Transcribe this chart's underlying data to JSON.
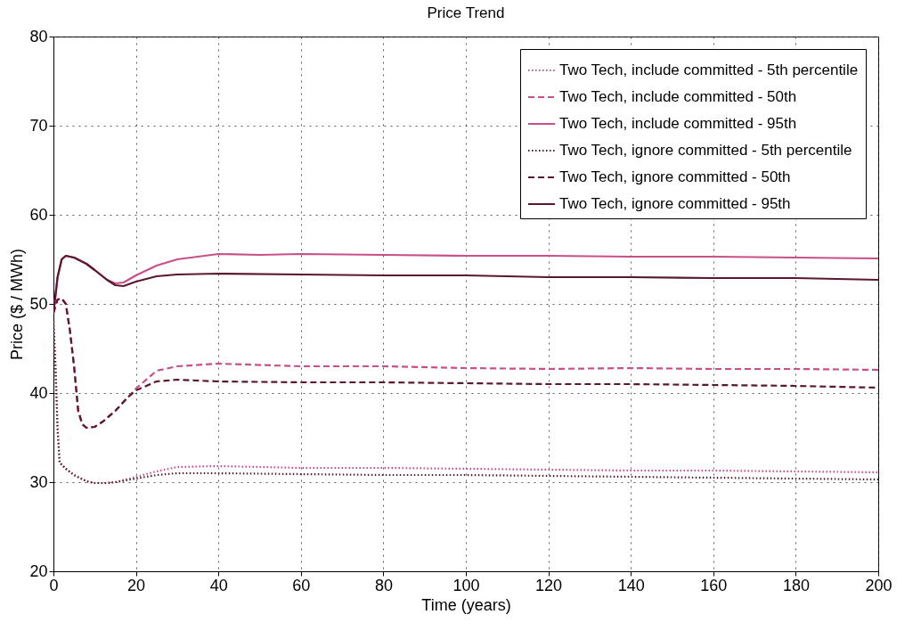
{
  "chart_data": {
    "type": "line",
    "title": "Price Trend",
    "xlabel": "Time (years)",
    "ylabel": "Price ($ / MWh)",
    "xlim": [
      0,
      200
    ],
    "xticks": [
      0,
      20,
      40,
      60,
      80,
      100,
      120,
      140,
      160,
      180,
      200
    ],
    "ylim": [
      20,
      80
    ],
    "yticks": [
      20,
      30,
      40,
      50,
      60,
      70,
      80
    ],
    "grid": true,
    "legend": "top right",
    "series": [
      {
        "name": "Two Tech, include committed - 5th percentile",
        "color": "#c8508a",
        "line_style": "dotted",
        "x": [
          0,
          0.5,
          1,
          1.5,
          3,
          5,
          8,
          10,
          13,
          15,
          20,
          25,
          30,
          40,
          60,
          80,
          100,
          120,
          140,
          160,
          180,
          200
        ],
        "values": [
          48,
          43,
          36,
          32.2,
          31.5,
          30.8,
          30.1,
          29.9,
          29.9,
          30,
          30.6,
          31.2,
          31.7,
          31.8,
          31.6,
          31.6,
          31.5,
          31.4,
          31.3,
          31.3,
          31.2,
          31.1
        ]
      },
      {
        "name": "Two Tech, include committed - 50th",
        "color": "#c8508a",
        "line_style": "dashed",
        "x": [
          0,
          1,
          2,
          3,
          4,
          5,
          6,
          7,
          8,
          10,
          12,
          15,
          18,
          20,
          25,
          30,
          40,
          60,
          80,
          100,
          120,
          140,
          160,
          180,
          200
        ],
        "values": [
          49,
          50.5,
          50.6,
          50,
          47,
          43,
          38,
          36.5,
          36.1,
          36.2,
          36.8,
          38,
          39.5,
          40.5,
          42.5,
          43,
          43.3,
          43,
          43,
          42.8,
          42.7,
          42.8,
          42.7,
          42.7,
          42.6
        ]
      },
      {
        "name": "Two Tech, include committed - 95th",
        "color": "#c8508a",
        "line_style": "solid",
        "x": [
          0,
          1,
          2,
          3,
          5,
          8,
          10,
          13,
          15,
          17,
          20,
          25,
          30,
          40,
          50,
          60,
          80,
          100,
          120,
          140,
          160,
          180,
          200
        ],
        "values": [
          49,
          53,
          55,
          55.4,
          55.2,
          54.5,
          53.8,
          52.7,
          52.3,
          52.4,
          53.2,
          54.3,
          55,
          55.6,
          55.5,
          55.6,
          55.5,
          55.4,
          55.4,
          55.3,
          55.3,
          55.2,
          55.1
        ]
      },
      {
        "name": "Two Tech, ignore committed - 5th percentile",
        "color": "#5a1830",
        "line_style": "dotted",
        "x": [
          0,
          0.5,
          1,
          1.5,
          3,
          5,
          8,
          10,
          13,
          15,
          20,
          25,
          30,
          40,
          60,
          80,
          100,
          120,
          140,
          160,
          180,
          200
        ],
        "values": [
          48,
          43,
          36,
          32.2,
          31.5,
          30.8,
          30.1,
          29.9,
          29.9,
          30,
          30.4,
          30.8,
          31,
          31,
          30.9,
          30.8,
          30.8,
          30.7,
          30.6,
          30.5,
          30.4,
          30.3
        ]
      },
      {
        "name": "Two Tech, ignore committed - 50th",
        "color": "#5a1830",
        "line_style": "dashed",
        "x": [
          0,
          1,
          2,
          3,
          4,
          5,
          6,
          7,
          8,
          10,
          12,
          15,
          18,
          20,
          25,
          30,
          40,
          60,
          80,
          100,
          120,
          140,
          160,
          180,
          200
        ],
        "values": [
          49,
          50.5,
          50.6,
          50,
          47,
          43,
          38,
          36.5,
          36.1,
          36.2,
          36.8,
          38,
          39.5,
          40.3,
          41.3,
          41.5,
          41.3,
          41.2,
          41.2,
          41.1,
          41,
          41,
          40.9,
          40.8,
          40.6
        ]
      },
      {
        "name": "Two Tech, ignore committed - 95th",
        "color": "#5a1830",
        "line_style": "solid",
        "x": [
          0,
          1,
          2,
          3,
          5,
          8,
          10,
          13,
          15,
          17,
          20,
          25,
          30,
          40,
          60,
          80,
          100,
          120,
          140,
          160,
          180,
          200
        ],
        "values": [
          49,
          53,
          55,
          55.4,
          55.2,
          54.5,
          53.8,
          52.7,
          52.1,
          52,
          52.5,
          53.1,
          53.3,
          53.4,
          53.3,
          53.2,
          53.2,
          53,
          53,
          52.9,
          52.9,
          52.7
        ]
      }
    ]
  }
}
